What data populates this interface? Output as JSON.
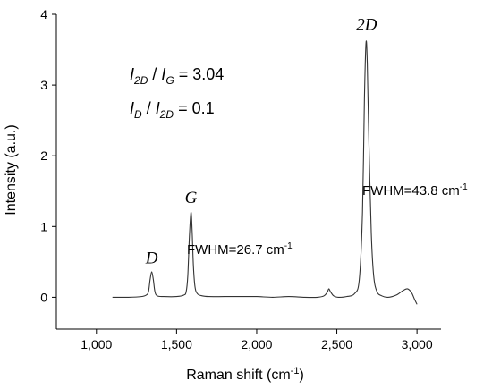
{
  "chart_data": {
    "type": "line",
    "title": "",
    "xlabel_main": "Raman shift (cm",
    "xlabel_sup": "-1",
    "xlabel_close": ")",
    "ylabel": "Intensity (a.u.)",
    "xlim": [
      750,
      3150
    ],
    "ylim": [
      -0.45,
      4
    ],
    "x_ticks": [
      1000,
      1500,
      2000,
      2500,
      3000
    ],
    "x_tick_labels": [
      "1,000",
      "1,500",
      "2,000",
      "2,500",
      "3,000"
    ],
    "y_ticks": [
      0,
      1,
      2,
      3,
      4
    ],
    "y_tick_labels": [
      "0",
      "1",
      "2",
      "3",
      "4"
    ],
    "series": [
      {
        "color": "#333333",
        "points": [
          [
            1100,
            0.0
          ],
          [
            1200,
            0.0
          ],
          [
            1280,
            0.01
          ],
          [
            1310,
            0.03
          ],
          [
            1325,
            0.08
          ],
          [
            1335,
            0.25
          ],
          [
            1345,
            0.36
          ],
          [
            1355,
            0.25
          ],
          [
            1365,
            0.08
          ],
          [
            1380,
            0.02
          ],
          [
            1420,
            0.01
          ],
          [
            1500,
            0.01
          ],
          [
            1545,
            0.03
          ],
          [
            1560,
            0.08
          ],
          [
            1570,
            0.3
          ],
          [
            1580,
            0.85
          ],
          [
            1590,
            1.2
          ],
          [
            1597,
            0.95
          ],
          [
            1605,
            0.45
          ],
          [
            1615,
            0.15
          ],
          [
            1630,
            0.05
          ],
          [
            1660,
            0.02
          ],
          [
            1700,
            0.01
          ],
          [
            1800,
            0.01
          ],
          [
            1900,
            0.01
          ],
          [
            2000,
            0.01
          ],
          [
            2100,
            0.0
          ],
          [
            2200,
            0.01
          ],
          [
            2300,
            0.0
          ],
          [
            2380,
            0.0
          ],
          [
            2420,
            0.02
          ],
          [
            2440,
            0.07
          ],
          [
            2450,
            0.12
          ],
          [
            2460,
            0.08
          ],
          [
            2480,
            0.02
          ],
          [
            2510,
            0.0
          ],
          [
            2560,
            0.01
          ],
          [
            2610,
            0.05
          ],
          [
            2640,
            0.25
          ],
          [
            2660,
            1.2
          ],
          [
            2672,
            2.8
          ],
          [
            2682,
            3.6
          ],
          [
            2690,
            3.3
          ],
          [
            2700,
            2.2
          ],
          [
            2715,
            0.9
          ],
          [
            2730,
            0.3
          ],
          [
            2750,
            0.08
          ],
          [
            2780,
            0.02
          ],
          [
            2820,
            0.0
          ],
          [
            2870,
            0.03
          ],
          [
            2910,
            0.09
          ],
          [
            2940,
            0.12
          ],
          [
            2965,
            0.07
          ],
          [
            2985,
            -0.03
          ],
          [
            3000,
            -0.1
          ]
        ]
      }
    ],
    "peak_labels": [
      {
        "text": "D",
        "x": 1345,
        "y": 0.48
      },
      {
        "text": "G",
        "x": 1590,
        "y": 1.33
      },
      {
        "text": "2D",
        "x": 2686,
        "y": 3.78
      }
    ],
    "annotations": {
      "ratio1_lhs_a": "I",
      "ratio1_lhs_a_sub": "2D",
      "ratio1_sep": " / ",
      "ratio1_lhs_b": "I",
      "ratio1_lhs_b_sub": "G",
      "ratio1_value": " = 3.04",
      "ratio2_lhs_a": "I",
      "ratio2_lhs_a_sub": "D",
      "ratio2_sep": " / ",
      "ratio2_lhs_b": "I",
      "ratio2_lhs_b_sub": "2D",
      "ratio2_value": " = 0.1",
      "fwhm_g_main": "FWHM=26.7 cm",
      "fwhm_g_sup": "-1",
      "fwhm_2d_main": "FWHM=43.8 cm",
      "fwhm_2d_sup": "-1"
    }
  }
}
